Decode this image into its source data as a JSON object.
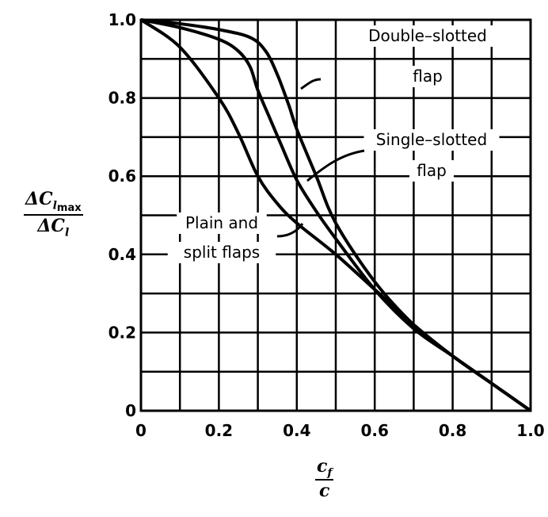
{
  "chart_data": {
    "type": "line",
    "title": "",
    "xlabel": {
      "num": "c",
      "num_sub": "f",
      "den": "c"
    },
    "ylabel": {
      "num": "ΔC",
      "num_sub": "l",
      "num_sub2": "max",
      "den": "ΔC",
      "den_sub": "l"
    },
    "xlim": [
      0,
      1.0
    ],
    "ylim": [
      0,
      1.0
    ],
    "grid": true,
    "xticks": [
      "0",
      "0.2",
      "0.4",
      "0.6",
      "0.8",
      "1.0"
    ],
    "yticks": [
      "0",
      "0.2",
      "0.4",
      "0.6",
      "0.8",
      "1.0"
    ],
    "series": [
      {
        "name": "Double-slotted flap",
        "label_lines": [
          "Double–slotted",
          "flap"
        ],
        "x": [
          0,
          0.1,
          0.2,
          0.28,
          0.32,
          0.35,
          0.38,
          0.4,
          0.45,
          0.5,
          0.6,
          0.7,
          0.8,
          0.9,
          1.0
        ],
        "y": [
          1,
          0.99,
          0.975,
          0.955,
          0.92,
          0.86,
          0.78,
          0.72,
          0.6,
          0.48,
          0.33,
          0.22,
          0.14,
          0.07,
          0
        ]
      },
      {
        "name": "Single-slotted flap",
        "label_lines": [
          "Single–slotted",
          "flap"
        ],
        "x": [
          0,
          0.1,
          0.2,
          0.25,
          0.28,
          0.3,
          0.33,
          0.36,
          0.4,
          0.45,
          0.5,
          0.6,
          0.7,
          0.8,
          0.9,
          1.0
        ],
        "y": [
          1,
          0.98,
          0.95,
          0.92,
          0.88,
          0.82,
          0.75,
          0.68,
          0.59,
          0.51,
          0.44,
          0.31,
          0.21,
          0.14,
          0.07,
          0
        ]
      },
      {
        "name": "Plain and split flaps",
        "label_lines": [
          "Plain and",
          "split flaps"
        ],
        "x": [
          0,
          0.1,
          0.2,
          0.25,
          0.3,
          0.35,
          0.4,
          0.5,
          0.6,
          0.7,
          0.8,
          0.9,
          1.0
        ],
        "y": [
          1,
          0.93,
          0.8,
          0.71,
          0.6,
          0.53,
          0.48,
          0.4,
          0.31,
          0.22,
          0.14,
          0.07,
          0
        ]
      }
    ]
  }
}
